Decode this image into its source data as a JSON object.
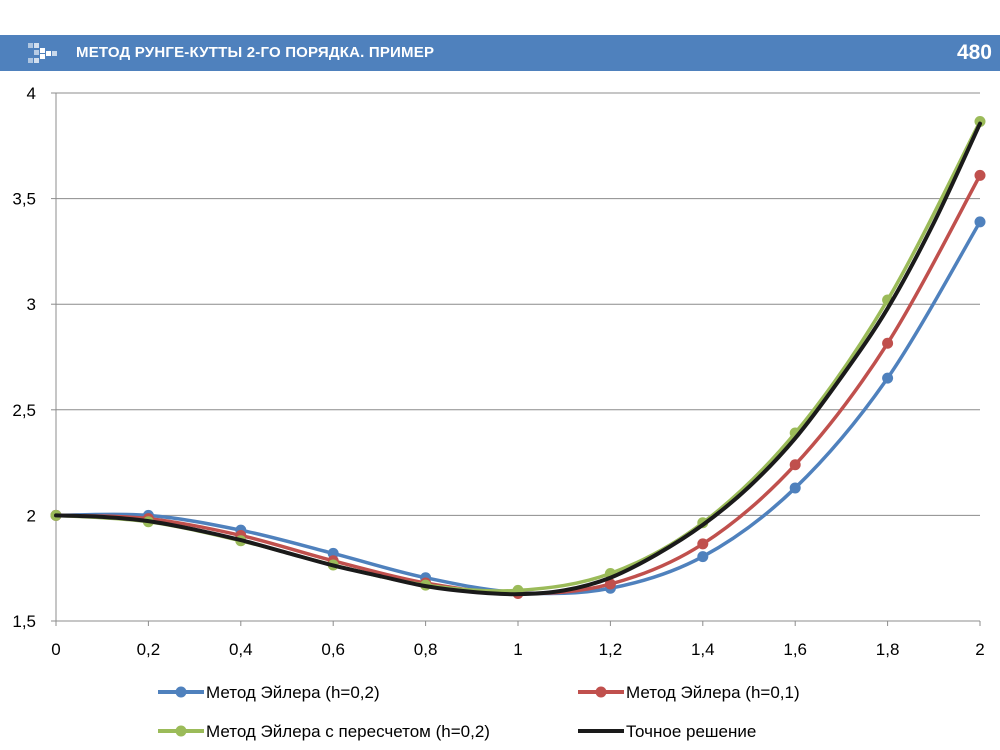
{
  "header": {
    "title": "МЕТОД РУНГЕ-КУТТЫ 2-ГО ПОРЯДКА. ПРИМЕР",
    "slide_number": "480",
    "accent_color": "#4f81bd",
    "logo_icon": "arrows-logo-icon"
  },
  "chart_data": {
    "type": "line",
    "title": "",
    "xlabel": "",
    "ylabel": "",
    "xlim": [
      0,
      2
    ],
    "ylim": [
      1.5,
      4
    ],
    "x_ticks": [
      0,
      0.2,
      0.4,
      0.6,
      0.8,
      1,
      1.2,
      1.4,
      1.6,
      1.8,
      2
    ],
    "x_tick_labels": [
      "0",
      "0,2",
      "0,4",
      "0,6",
      "0,8",
      "1",
      "1,2",
      "1,4",
      "1,6",
      "1,8",
      "2"
    ],
    "y_ticks": [
      1.5,
      2,
      2.5,
      3,
      3.5,
      4
    ],
    "y_tick_labels": [
      "1,5",
      "2",
      "2,5",
      "3",
      "3,5",
      "4"
    ],
    "grid": "horizontal",
    "legend_position": "bottom",
    "series": [
      {
        "name": "Метод Эйлера (h=0,2)",
        "color": "#4f81bd",
        "markers": true,
        "x": [
          0,
          0.2,
          0.4,
          0.6,
          0.8,
          1.0,
          1.2,
          1.4,
          1.6,
          1.8,
          2.0
        ],
        "y": [
          2.0,
          2.0,
          1.93,
          1.82,
          1.705,
          1.635,
          1.655,
          1.805,
          2.13,
          2.65,
          3.39
        ]
      },
      {
        "name": "Метод Эйлера (h=0,1)",
        "color": "#c0504d",
        "markers": true,
        "x": [
          0,
          0.2,
          0.4,
          0.6,
          0.8,
          1.0,
          1.2,
          1.4,
          1.6,
          1.8,
          2.0
        ],
        "y": [
          2.0,
          1.985,
          1.905,
          1.785,
          1.68,
          1.63,
          1.675,
          1.865,
          2.24,
          2.815,
          3.61
        ]
      },
      {
        "name": "Метод Эйлера с пересчетом (h=0,2)",
        "color": "#9bbb59",
        "markers": true,
        "x": [
          0,
          0.2,
          0.4,
          0.6,
          0.8,
          1.0,
          1.2,
          1.4,
          1.6,
          1.8,
          2.0
        ],
        "y": [
          2.0,
          1.97,
          1.88,
          1.765,
          1.67,
          1.645,
          1.725,
          1.965,
          2.39,
          3.02,
          3.865
        ]
      },
      {
        "name": "Точное решение",
        "color": "#1a1a1a",
        "markers": false,
        "x": [
          0,
          0.1,
          0.2,
          0.3,
          0.4,
          0.5,
          0.6,
          0.7,
          0.8,
          0.9,
          1.0,
          1.1,
          1.2,
          1.3,
          1.4,
          1.5,
          1.6,
          1.7,
          1.8,
          1.9,
          2.0
        ],
        "y": [
          2.0,
          1.993,
          1.973,
          1.933,
          1.883,
          1.823,
          1.763,
          1.713,
          1.665,
          1.638,
          1.627,
          1.645,
          1.705,
          1.815,
          1.955,
          2.135,
          2.365,
          2.655,
          2.98,
          3.385,
          3.855
        ]
      }
    ]
  }
}
